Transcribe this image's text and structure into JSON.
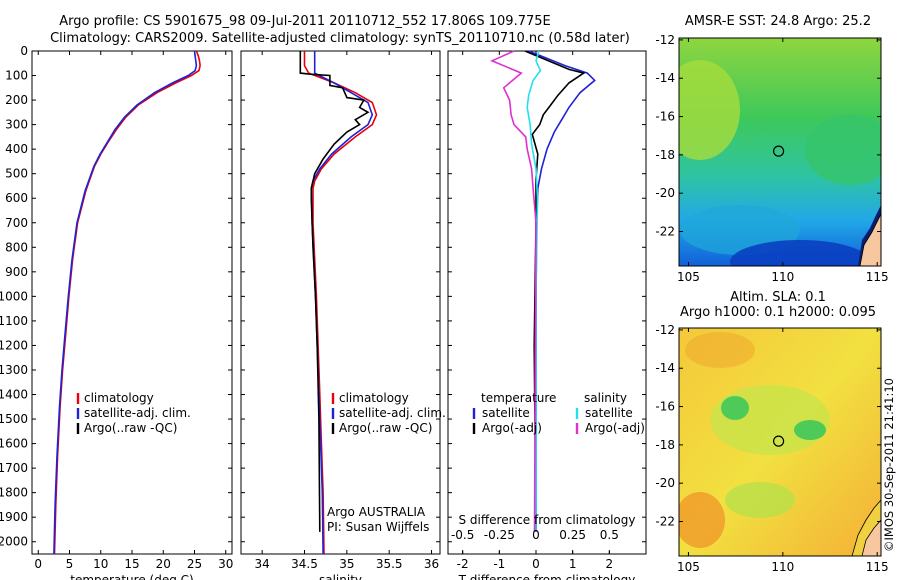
{
  "header": {
    "line1": "Argo profile: CS 5901675_98 09-Jul-2011 20110712_552 17.806S 109.775E",
    "line2": "Climatology: CARS2009. Satellite-adjusted climatology: synTS_20110710.nc (0.58d later)"
  },
  "colors": {
    "climatology": "#e8000b",
    "satellite": "#1f22d6",
    "argo": "#000000",
    "sal_sat": "#22e0f0",
    "sal_argo": "#e030d0"
  },
  "chart_data": [
    {
      "id": "temperature",
      "type": "line",
      "xlabel": "temperature (deg C)",
      "ylabel": "",
      "xlim": [
        -1,
        31
      ],
      "ylim": [
        0,
        2050
      ],
      "xticks": [
        "0",
        "5",
        "10",
        "15",
        "20",
        "25",
        "30"
      ],
      "xtick_values": [
        0,
        5,
        10,
        15,
        20,
        25,
        30
      ],
      "yticks": [
        "0",
        "100",
        "200",
        "300",
        "400",
        "500",
        "600",
        "700",
        "800",
        "900",
        "1000",
        "1100",
        "1200",
        "1300",
        "1400",
        "1500",
        "1600",
        "1700",
        "1800",
        "1900",
        "2000"
      ],
      "ytick_values": [
        0,
        100,
        200,
        300,
        400,
        500,
        600,
        700,
        800,
        900,
        1000,
        1100,
        1200,
        1300,
        1400,
        1500,
        1600,
        1700,
        1800,
        1900,
        2000
      ],
      "legend": [
        "climatology",
        "satellite-adj. clim.",
        "Argo(..raw -QC)"
      ],
      "series": [
        {
          "name": "climatology",
          "color": "#e8000b",
          "x": [
            25.3,
            25.6,
            25.8,
            25.9,
            25.7,
            24.5,
            22,
            19,
            16,
            14,
            12.5,
            11.2,
            10,
            9,
            8.3,
            7.6,
            6.3,
            5.5,
            4.9,
            4.4,
            3.9,
            3.5,
            3.1,
            2.8,
            2.6
          ],
          "y": [
            0,
            20,
            40,
            60,
            80,
            100,
            130,
            170,
            220,
            270,
            320,
            370,
            420,
            470,
            520,
            570,
            700,
            850,
            1000,
            1150,
            1300,
            1450,
            1650,
            1850,
            2050
          ]
        },
        {
          "name": "satellite-adj. clim.",
          "color": "#1f22d6",
          "x": [
            25.0,
            25.1,
            25.2,
            25.3,
            25.1,
            24.0,
            21.5,
            18.6,
            15.8,
            13.8,
            12.3,
            11.1,
            9.9,
            8.9,
            8.2,
            7.5,
            6.2,
            5.4,
            4.8,
            4.3,
            3.8,
            3.4,
            3.0,
            2.7,
            2.5
          ],
          "y": [
            0,
            20,
            40,
            60,
            80,
            100,
            130,
            170,
            220,
            270,
            320,
            370,
            420,
            470,
            520,
            570,
            700,
            850,
            1000,
            1150,
            1300,
            1450,
            1650,
            1850,
            2050
          ]
        },
        {
          "name": "Argo(..raw -QC)",
          "color": "#000000",
          "x": [],
          "y": []
        }
      ]
    },
    {
      "id": "salinity",
      "type": "line",
      "xlabel": "salinity",
      "ylabel": "",
      "xlim": [
        33.75,
        36.1
      ],
      "ylim": [
        0,
        2050
      ],
      "xticks": [
        "34",
        "34.5",
        "35",
        "35.5",
        "36"
      ],
      "xtick_values": [
        34,
        34.5,
        35,
        35.5,
        36
      ],
      "legend": [
        "climatology",
        "satellite-adj. clim.",
        "Argo(..raw -QC)"
      ],
      "annotation": [
        "Argo AUSTRALIA",
        "PI: Susan Wijffels"
      ],
      "series": [
        {
          "name": "climatology",
          "color": "#e8000b",
          "x": [
            34.5,
            34.5,
            34.55,
            34.85,
            35.1,
            35.3,
            35.35,
            35.3,
            35.1,
            34.85,
            34.7,
            34.62,
            34.6,
            34.6,
            34.62,
            34.64,
            34.66,
            34.68,
            34.7,
            34.72,
            34.73
          ],
          "y": [
            0,
            60,
            90,
            130,
            170,
            210,
            260,
            300,
            350,
            420,
            480,
            530,
            560,
            700,
            850,
            1000,
            1200,
            1400,
            1600,
            1800,
            2050
          ]
        },
        {
          "name": "satellite-adj. clim.",
          "color": "#1f22d6",
          "x": [
            34.62,
            34.62,
            34.62,
            34.85,
            35.05,
            35.25,
            35.3,
            35.25,
            35.05,
            34.82,
            34.68,
            34.6,
            34.58,
            34.59,
            34.61,
            34.63,
            34.65,
            34.67,
            34.69,
            34.71,
            34.72
          ],
          "y": [
            0,
            60,
            90,
            130,
            170,
            210,
            260,
            300,
            350,
            420,
            480,
            530,
            560,
            700,
            850,
            1000,
            1200,
            1400,
            1600,
            1800,
            2050
          ]
        },
        {
          "name": "Argo(..raw -QC)",
          "color": "#000000",
          "x": [
            34.45,
            34.45,
            34.58,
            34.8,
            34.8,
            34.95,
            35.0,
            35.2,
            35.15,
            35.25,
            35.1,
            35.15,
            35.0,
            34.85,
            34.72,
            34.62,
            34.58,
            34.58,
            34.6,
            34.63,
            34.65,
            34.67,
            34.68
          ],
          "y": [
            0,
            90,
            95,
            100,
            140,
            150,
            190,
            200,
            230,
            250,
            280,
            300,
            330,
            380,
            440,
            500,
            560,
            600,
            800,
            1000,
            1200,
            1500,
            1960
          ]
        }
      ]
    },
    {
      "id": "differences",
      "type": "line",
      "xlabel": "T difference from climatology",
      "xlim": [
        -2.4,
        3.0
      ],
      "ylim": [
        0,
        2050
      ],
      "xticks": [
        "-2",
        "-1",
        "0",
        "1",
        "2"
      ],
      "xtick_values": [
        -2,
        -1,
        0,
        1,
        2
      ],
      "x2label": "S difference from climatology",
      "x2ticks": [
        "-0.5",
        "-0.25",
        "0",
        "0.25",
        "0.5"
      ],
      "x2tick_values": [
        -0.5,
        -0.25,
        0,
        0.25,
        0.5
      ],
      "x2lim": [
        -0.6,
        0.75
      ],
      "legend_left_title": "temperature",
      "legend_right_title": "salinity",
      "legend": [
        "satellite",
        "Argo(-adj)",
        "satellite",
        "Argo(-adj)"
      ],
      "series": [
        {
          "name": "T satellite",
          "color": "#1f22d6",
          "x": [
            -0.2,
            0.8,
            1.4,
            1.6,
            1.2,
            0.9,
            0.7,
            0.5,
            0.3,
            0.15,
            0.05,
            0.02,
            0.0,
            0.0
          ],
          "y": [
            0,
            60,
            90,
            120,
            170,
            230,
            280,
            330,
            400,
            480,
            560,
            700,
            1000,
            1960
          ]
        },
        {
          "name": "T Argo(-adj)",
          "color": "#000000",
          "x": [
            -0.3,
            0.9,
            1.3,
            0.9,
            0.6,
            0.4,
            0.2,
            0.1,
            -0.1,
            0.05,
            0.0,
            0.0,
            -0.05,
            0.0
          ],
          "y": [
            0,
            75,
            90,
            130,
            180,
            220,
            260,
            300,
            340,
            420,
            520,
            700,
            1200,
            1960
          ]
        },
        {
          "name": "S satellite",
          "color": "#22e0f0",
          "x": [
            0.02,
            0.0,
            0.03,
            -0.02,
            -0.05,
            -0.06,
            -0.04,
            -0.03,
            0.0,
            0.01,
            0.0,
            0.0
          ],
          "y": [
            0,
            40,
            80,
            120,
            180,
            230,
            300,
            380,
            480,
            600,
            1000,
            1960
          ]
        },
        {
          "name": "S Argo(-adj)",
          "color": "#e030d0",
          "x": [
            -0.15,
            -0.3,
            -0.1,
            -0.22,
            -0.18,
            -0.17,
            -0.15,
            -0.07,
            -0.06,
            -0.03,
            -0.02,
            0.0,
            -0.01
          ],
          "y": [
            0,
            40,
            90,
            150,
            200,
            260,
            300,
            350,
            400,
            480,
            560,
            700,
            1960
          ]
        }
      ]
    },
    {
      "id": "sst_map",
      "type": "heatmap",
      "title": "AMSR-E SST: 24.8 Argo: 25.2",
      "xticks": [
        "105",
        "110",
        "115"
      ],
      "yticks": [
        "-12",
        "-14",
        "-16",
        "-18",
        "-20",
        "-22"
      ],
      "xlim": [
        104.5,
        115.2
      ],
      "ylim": [
        -23.8,
        -11.9
      ],
      "marker": {
        "lon": 109.775,
        "lat": -17.806
      }
    },
    {
      "id": "sla_map",
      "type": "heatmap",
      "title": "Altim. SLA: 0.1",
      "subtitle": "Argo h1000: 0.1 h2000: 0.095",
      "xticks": [
        "105",
        "110",
        "115"
      ],
      "yticks": [
        "-12",
        "-14",
        "-16",
        "-18",
        "-20",
        "-22"
      ],
      "xlim": [
        104.5,
        115.2
      ],
      "ylim": [
        -23.8,
        -11.9
      ],
      "marker": {
        "lon": 109.775,
        "lat": -17.806
      }
    }
  ],
  "footer": {
    "credit": "©IMOS 30-Sep-2011 21:41:10"
  }
}
